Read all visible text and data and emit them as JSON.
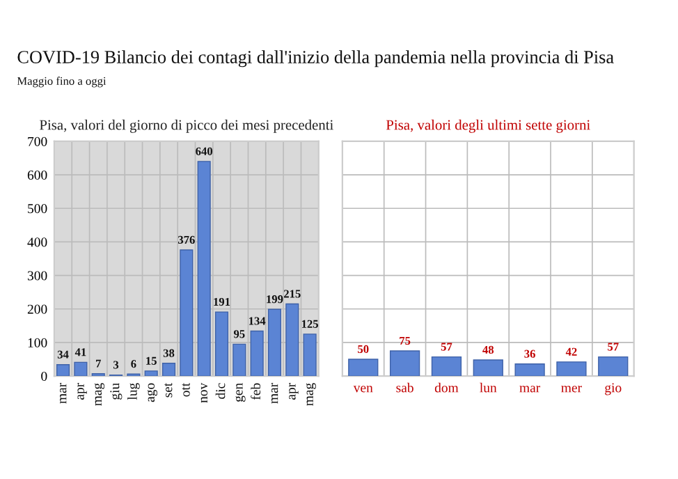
{
  "chart_data": [
    {
      "type": "bar",
      "title": "Pisa, valori del giorno di picco dei mesi precedenti",
      "annotations": [
        "COVID-19 Bilancio dei contagi dall'inizio della pandemia nella provincia di Pisa",
        "Maggio fino a oggi"
      ],
      "categories": [
        "mar",
        "apr",
        "mag",
        "giu",
        "lug",
        "ago",
        "set",
        "ott",
        "nov",
        "dic",
        "gen",
        "feb",
        "mar",
        "apr",
        "mag"
      ],
      "values": [
        34,
        41,
        7,
        3,
        6,
        15,
        38,
        376,
        640,
        191,
        95,
        134,
        199,
        215,
        125
      ],
      "color": "#5b84d4",
      "ylim": [
        0,
        700
      ],
      "yticks": [
        0,
        100,
        200,
        300,
        400,
        500,
        600,
        700
      ],
      "grid": true,
      "data_labels": true
    },
    {
      "type": "bar",
      "title": "Pisa, valori degli ultimi sette giorni",
      "categories": [
        "ven",
        "sab",
        "dom",
        "lun",
        "mar",
        "mer",
        "gio"
      ],
      "values": [
        50,
        75,
        57,
        48,
        36,
        42,
        57
      ],
      "color": "#5b84d4",
      "ylim": [
        0,
        700
      ],
      "yticks": [
        {
          "value": 0,
          "label": null
        },
        {
          "value": 100,
          "label": null
        },
        {
          "value": 200,
          "label": null
        },
        {
          "value": 300,
          "label": null
        },
        {
          "value": 400,
          "label": null
        },
        {
          "value": 500,
          "label": null
        },
        {
          "value": 600,
          "label": null
        },
        {
          "value": 700,
          "label": null
        }
      ],
      "grid": true,
      "data_labels": true,
      "tick_labels": "x"
    }
  ]
}
